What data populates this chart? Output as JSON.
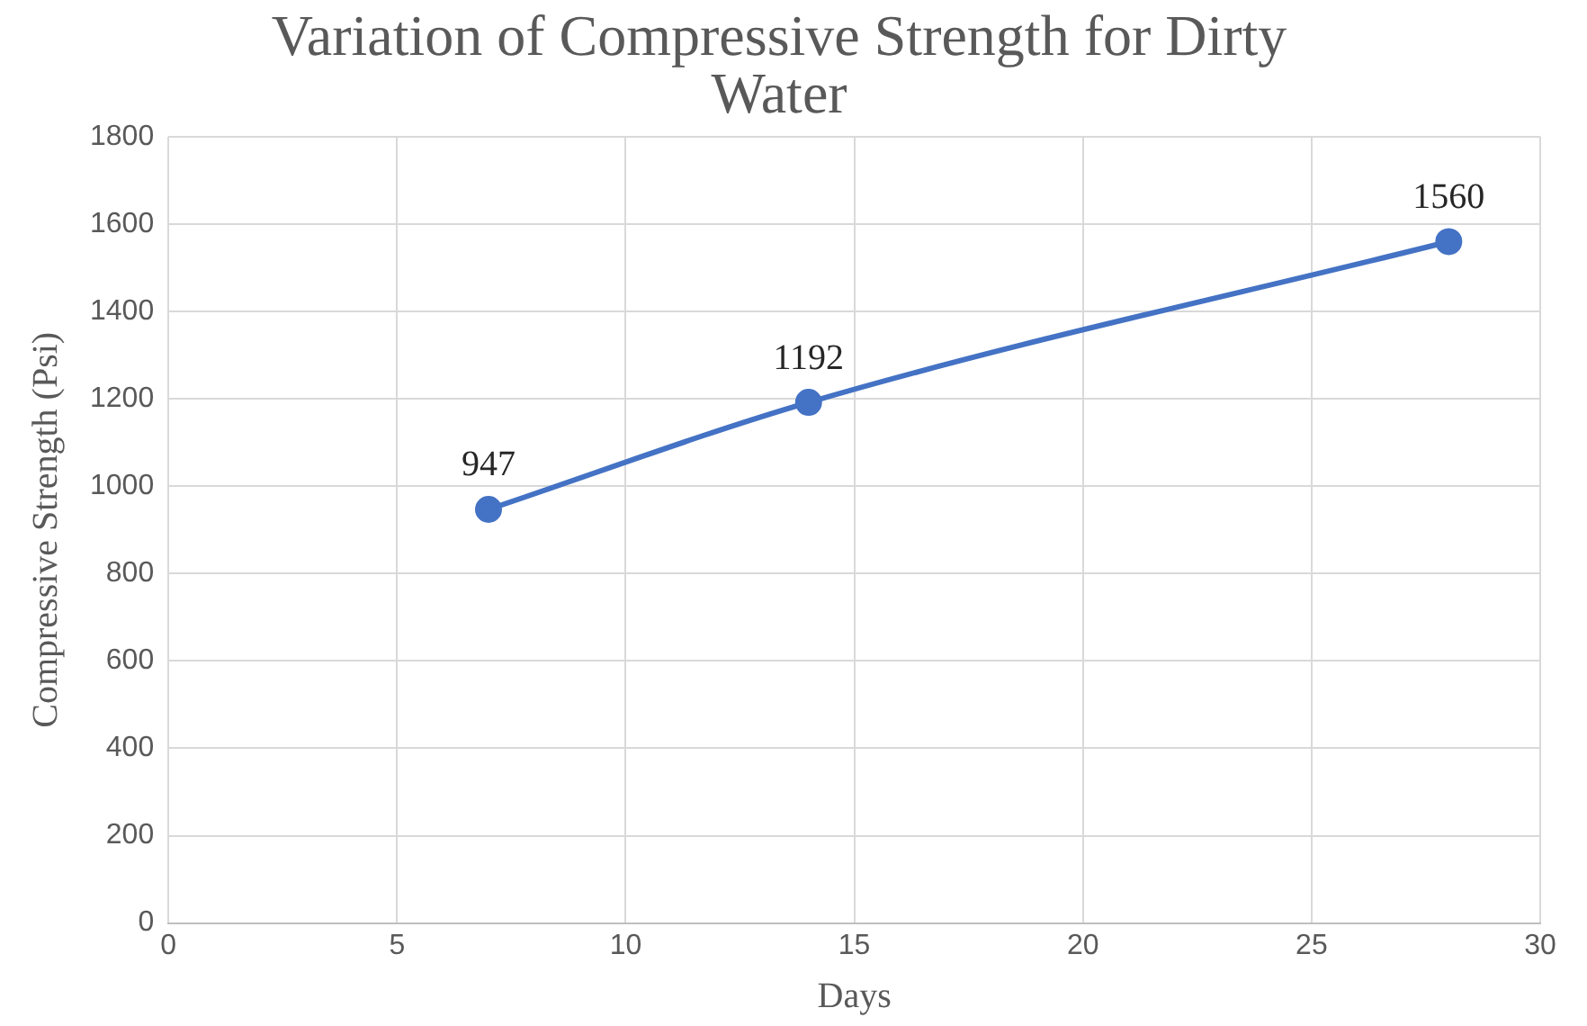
{
  "chart_data": {
    "type": "line",
    "title": "Variation of Compressive Strength for Dirty Water",
    "xlabel": "Days",
    "ylabel": "Compressive Strength (Psi)",
    "x": [
      7,
      14,
      28
    ],
    "series": [
      {
        "color": "#4472c4",
        "values": [
          947,
          1192,
          1560
        ]
      }
    ],
    "xlim": [
      0,
      30
    ],
    "xticks": [
      0,
      5,
      10,
      15,
      20,
      25,
      30
    ],
    "ylim": [
      0,
      1800
    ],
    "yticks": [
      0,
      200,
      400,
      600,
      800,
      1000,
      1200,
      1400,
      1600,
      1800
    ],
    "grid": true,
    "legend": false,
    "marker": "circle",
    "line_style": "solid",
    "data_labels": true
  }
}
